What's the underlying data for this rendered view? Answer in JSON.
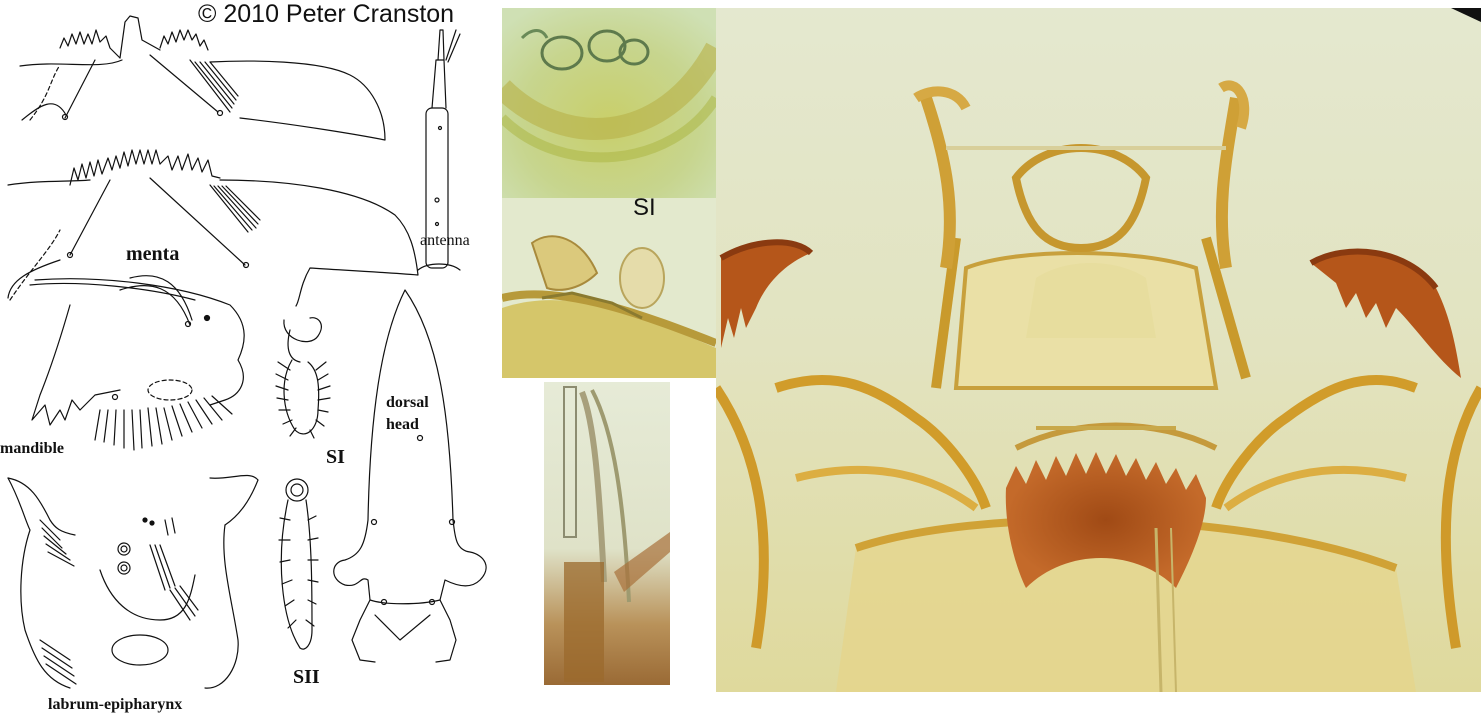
{
  "copyright": "© 2010 Peter Cranston",
  "drawing_labels": {
    "menta": "menta",
    "antenna": "antenna",
    "mandible": "mandible",
    "si": "SI",
    "sii": "SII",
    "dorsal_head": "dorsal\nhead",
    "labrum": "labrum-epipharynx"
  },
  "photo_labels": {
    "si": "SI"
  },
  "colors": {
    "amber": "#c98f1c",
    "dark_brown": "#8a3a10",
    "photo_bg": "#dfe3c2",
    "ink": "#111111"
  }
}
